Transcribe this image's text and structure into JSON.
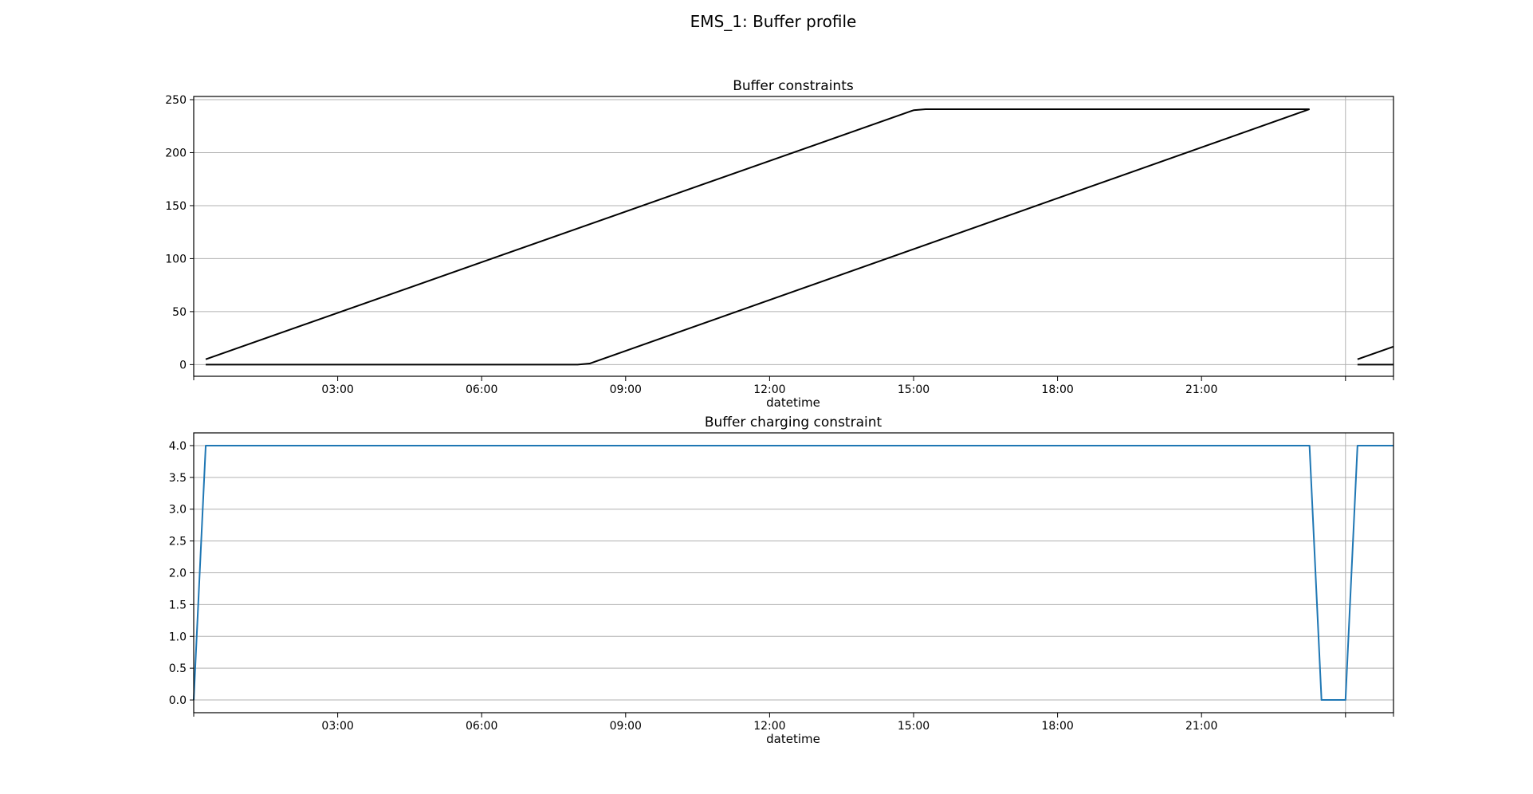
{
  "figure": {
    "suptitle": "EMS_1: Buffer profile"
  },
  "chart_data": [
    {
      "type": "line",
      "title": "Buffer constraints",
      "xlabel": "datetime",
      "ylabel": "",
      "x_ticks": [
        "03:00",
        "06:00",
        "09:00",
        "12:00",
        "15:00",
        "18:00",
        "21:00",
        ""
      ],
      "y_ticks": [
        0,
        50,
        100,
        150,
        200,
        250
      ],
      "xlim_hours": [
        0,
        25
      ],
      "ylim": [
        -11,
        253
      ],
      "grid": "y",
      "vline_hour": 24,
      "colors": {
        "series": "#000000",
        "grid": "#b0b0b0"
      },
      "series": [
        {
          "segments": [
            [
              [
                0.25,
                5
              ],
              [
                15.0,
                240
              ],
              [
                15.25,
                241
              ],
              [
                23.25,
                241
              ]
            ],
            [
              [
                24.25,
                5
              ],
              [
                25.0,
                17
              ]
            ]
          ]
        },
        {
          "segments": [
            [
              [
                0.25,
                0
              ],
              [
                8.0,
                0
              ],
              [
                8.25,
                1
              ],
              [
                23.25,
                241
              ]
            ],
            [
              [
                24.25,
                0
              ],
              [
                25.0,
                0
              ]
            ]
          ]
        }
      ]
    },
    {
      "type": "line",
      "title": "Buffer charging constraint",
      "xlabel": "datetime",
      "ylabel": "",
      "x_ticks": [
        "03:00",
        "06:00",
        "09:00",
        "12:00",
        "15:00",
        "18:00",
        "21:00",
        ""
      ],
      "y_ticks": [
        "0.0",
        "0.5",
        "1.0",
        "1.5",
        "2.0",
        "2.5",
        "3.0",
        "3.5",
        "4.0"
      ],
      "xlim_hours": [
        0,
        25
      ],
      "ylim": [
        -0.2,
        4.2
      ],
      "grid": "y",
      "vline_hour": 24,
      "colors": {
        "series": "#1f77b4",
        "grid": "#b0b0b0"
      },
      "series": [
        {
          "segments": [
            [
              [
                0.0,
                0
              ],
              [
                0.25,
                4
              ],
              [
                23.25,
                4
              ],
              [
                23.5,
                0
              ],
              [
                24.0,
                0
              ],
              [
                24.25,
                4
              ],
              [
                25.0,
                4
              ]
            ]
          ]
        }
      ]
    }
  ]
}
